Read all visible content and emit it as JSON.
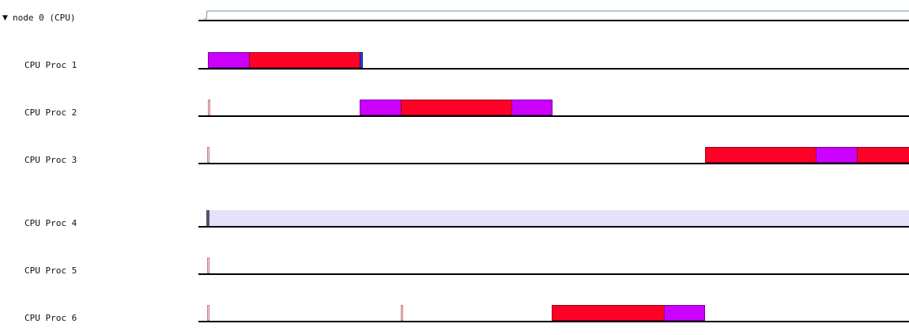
{
  "node": {
    "toggle_glyph": "▼",
    "label": "node 0 (CPU)"
  },
  "colors": {
    "magenta": "#cc00ff",
    "red": "#ff0026",
    "lavender": "#e4e1fa",
    "blue": "#1f3fd8",
    "marker_fill": "#f4dde0",
    "marker_border": "#c97a80",
    "util_line": "#6a8fb5"
  },
  "rows": [
    {
      "label": "CPU Proc 1"
    },
    {
      "label": "CPU Proc 2"
    },
    {
      "label": "CPU Proc 3"
    },
    {
      "label": "CPU Proc 4"
    },
    {
      "label": "CPU Proc 5"
    },
    {
      "label": "CPU Proc 6"
    }
  ]
}
